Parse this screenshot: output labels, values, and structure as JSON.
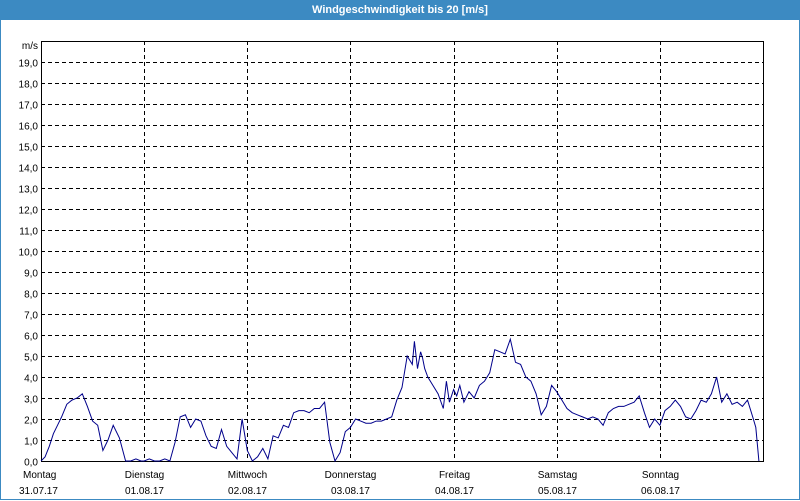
{
  "window": {
    "title": "Windgeschwindigkeit bis 20 [m/s]"
  },
  "chart_data": {
    "type": "line",
    "title": "Windgeschwindigkeit bis 20 [m/s]",
    "ylabel": "m/s",
    "xlabel": "",
    "ylim": [
      0,
      20
    ],
    "xlim": [
      0,
      7
    ],
    "grid": true,
    "line_color": "#00008b",
    "y_ticks": [
      "0,0",
      "1,0",
      "2,0",
      "3,0",
      "4,0",
      "5,0",
      "6,0",
      "7,0",
      "8,0",
      "9,0",
      "10,0",
      "11,0",
      "12,0",
      "13,0",
      "14,0",
      "15,0",
      "16,0",
      "17,0",
      "18,0",
      "19,0"
    ],
    "x_ticks": [
      {
        "day": "Montag",
        "date": "31.07.17"
      },
      {
        "day": "Dienstag",
        "date": "01.08.17"
      },
      {
        "day": "Mittwoch",
        "date": "02.08.17"
      },
      {
        "day": "Donnerstag",
        "date": "03.08.17"
      },
      {
        "day": "Freitag",
        "date": "04.08.17"
      },
      {
        "day": "Samstag",
        "date": "05.08.17"
      },
      {
        "day": "Sonntag",
        "date": "06.08.17"
      }
    ],
    "series": [
      {
        "x": [
          0,
          0.04,
          0.08,
          0.12,
          0.16,
          0.2,
          0.25,
          0.3,
          0.35,
          0.4,
          0.45,
          0.5,
          0.55,
          0.6,
          0.65,
          0.7,
          0.76,
          0.82,
          0.87,
          0.92,
          0.97,
          1.0,
          1.05,
          1.1,
          1.15,
          1.2,
          1.25,
          1.3,
          1.35,
          1.4,
          1.45,
          1.5,
          1.55,
          1.6,
          1.65,
          1.7,
          1.75,
          1.8,
          1.85,
          1.9,
          1.95,
          2.0,
          2.05,
          2.1,
          2.15,
          2.2,
          2.25,
          2.3,
          2.35,
          2.4,
          2.45,
          2.5,
          2.55,
          2.6,
          2.65,
          2.7,
          2.75,
          2.8,
          2.85,
          2.9,
          2.95,
          3.0,
          3.05,
          3.1,
          3.15,
          3.2,
          3.25,
          3.3,
          3.35,
          3.4,
          3.45,
          3.5,
          3.55,
          3.6,
          3.62,
          3.65,
          3.68,
          3.7,
          3.72,
          3.75,
          3.8,
          3.85,
          3.9,
          3.93,
          3.96,
          4.0,
          4.03,
          4.06,
          4.1,
          4.15,
          4.2,
          4.25,
          4.3,
          4.35,
          4.4,
          4.45,
          4.5,
          4.55,
          4.6,
          4.65,
          4.7,
          4.75,
          4.8,
          4.85,
          4.9,
          4.95,
          5.0,
          5.05,
          5.1,
          5.15,
          5.2,
          5.25,
          5.3,
          5.35,
          5.4,
          5.45,
          5.5,
          5.55,
          5.6,
          5.65,
          5.7,
          5.75,
          5.8,
          5.85,
          5.9,
          5.95,
          6.0,
          6.05,
          6.1,
          6.15,
          6.2,
          6.25,
          6.3,
          6.35,
          6.4,
          6.45,
          6.5,
          6.55,
          6.6,
          6.65,
          6.7,
          6.75,
          6.8,
          6.85,
          6.9,
          6.93,
          6.96
        ],
        "values": [
          0.0,
          0.2,
          0.7,
          1.3,
          1.7,
          2.1,
          2.7,
          2.9,
          3.0,
          3.2,
          2.6,
          1.9,
          1.7,
          0.5,
          1.0,
          1.7,
          1.1,
          0.0,
          0.0,
          0.1,
          0.0,
          0.0,
          0.1,
          0.0,
          0.0,
          0.1,
          0.0,
          0.9,
          2.1,
          2.2,
          1.6,
          2.0,
          1.9,
          1.2,
          0.7,
          0.6,
          1.5,
          0.7,
          0.4,
          0.1,
          2.0,
          0.5,
          0.0,
          0.2,
          0.6,
          0.1,
          1.2,
          1.1,
          1.7,
          1.6,
          2.3,
          2.4,
          2.4,
          2.3,
          2.5,
          2.5,
          2.8,
          0.9,
          0.0,
          0.4,
          1.4,
          1.6,
          2.0,
          1.9,
          1.8,
          1.8,
          1.9,
          1.9,
          2.0,
          2.1,
          2.9,
          3.5,
          5.0,
          4.6,
          5.7,
          4.4,
          5.2,
          4.9,
          4.4,
          4.0,
          3.6,
          3.2,
          2.5,
          3.8,
          2.8,
          3.4,
          3.1,
          3.6,
          2.8,
          3.3,
          3.0,
          3.6,
          3.8,
          4.2,
          5.3,
          5.2,
          5.1,
          5.8,
          4.7,
          4.6,
          4.0,
          3.8,
          3.2,
          2.2,
          2.6,
          3.6,
          3.3,
          2.9,
          2.5,
          2.3,
          2.2,
          2.1,
          2.0,
          2.1,
          2.0,
          1.7,
          2.3,
          2.5,
          2.6,
          2.6,
          2.7,
          2.8,
          3.1,
          2.3,
          1.6,
          2.0,
          1.7,
          2.4,
          2.6,
          2.9,
          2.6,
          2.1,
          2.0,
          2.4,
          2.9,
          2.8,
          3.2,
          4.0,
          2.8,
          3.2,
          2.7,
          2.8,
          2.6,
          2.9,
          2.1,
          1.6,
          0.0
        ]
      }
    ]
  }
}
